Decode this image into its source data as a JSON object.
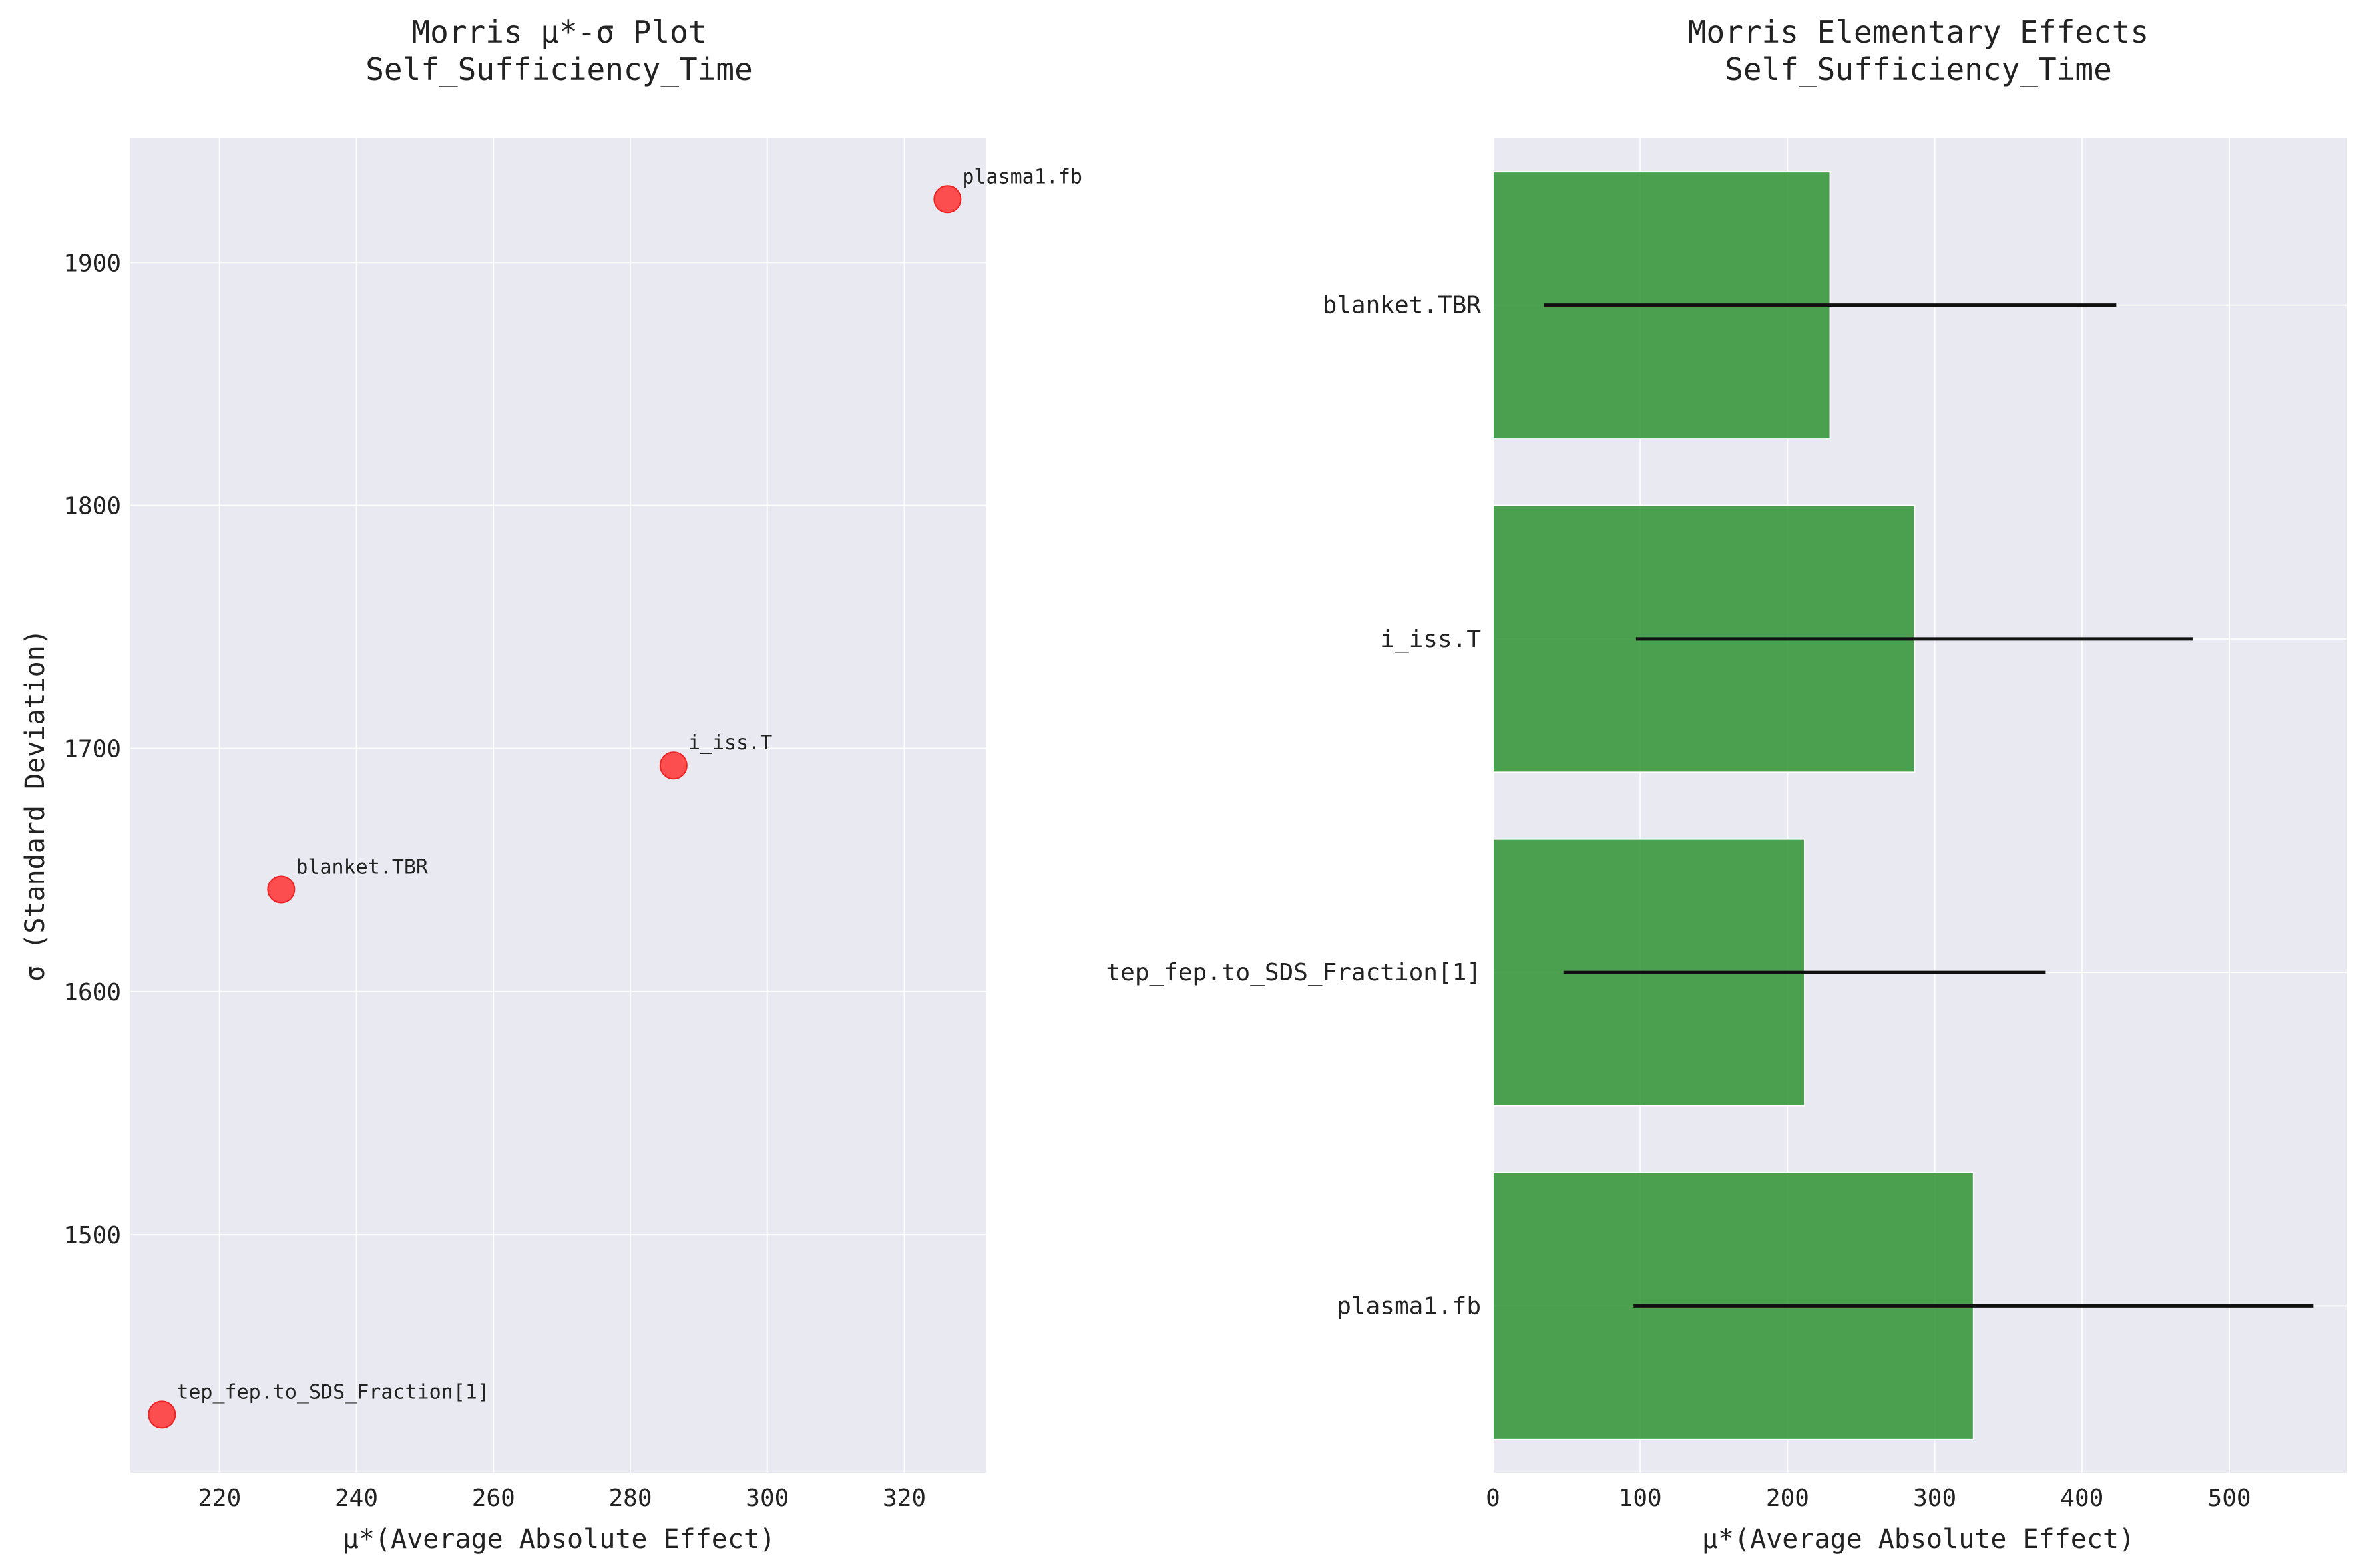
{
  "chart_data": [
    {
      "type": "scatter",
      "title_line1": "Morris μ*-σ Plot",
      "title_line2": "Self_Sufficiency_Time",
      "xlabel": "μ*(Average Absolute Effect)",
      "ylabel": "σ (Standard Deviation)",
      "xlim": [
        207,
        332
      ],
      "ylim": [
        1402,
        1951
      ],
      "xticks": [
        220,
        240,
        260,
        280,
        300,
        320
      ],
      "yticks": [
        1500,
        1600,
        1700,
        1800,
        1900
      ],
      "grid": true,
      "point_color": "#ff3333",
      "points": [
        {
          "label": "plasma1.fb",
          "x": 326.3,
          "y": 1926
        },
        {
          "label": "i_iss.T",
          "x": 286.3,
          "y": 1693
        },
        {
          "label": "blanket.TBR",
          "x": 229.0,
          "y": 1642
        },
        {
          "label": "tep_fep.to_SDS_Fraction[1]",
          "x": 211.6,
          "y": 1426
        }
      ]
    },
    {
      "type": "bar",
      "orientation": "horizontal",
      "title_line1": "Morris Elementary Effects",
      "title_line2": "Self_Sufficiency_Time",
      "xlabel": "μ*(Average Absolute Effect)",
      "xlim": [
        0,
        580
      ],
      "xticks": [
        0,
        100,
        200,
        300,
        400,
        500
      ],
      "grid": true,
      "bar_color": "#2e9331",
      "errorbar_color": "#111111",
      "categories": [
        "blanket.TBR",
        "i_iss.T",
        "tep_fep.to_SDS_Fraction[1]",
        "plasma1.fb"
      ],
      "values": [
        229.0,
        286.3,
        211.6,
        326.3
      ],
      "error_low": [
        34.7,
        97.1,
        47.8,
        95.5
      ],
      "error_high": [
        423.3,
        475.5,
        375.4,
        557.1
      ]
    }
  ]
}
